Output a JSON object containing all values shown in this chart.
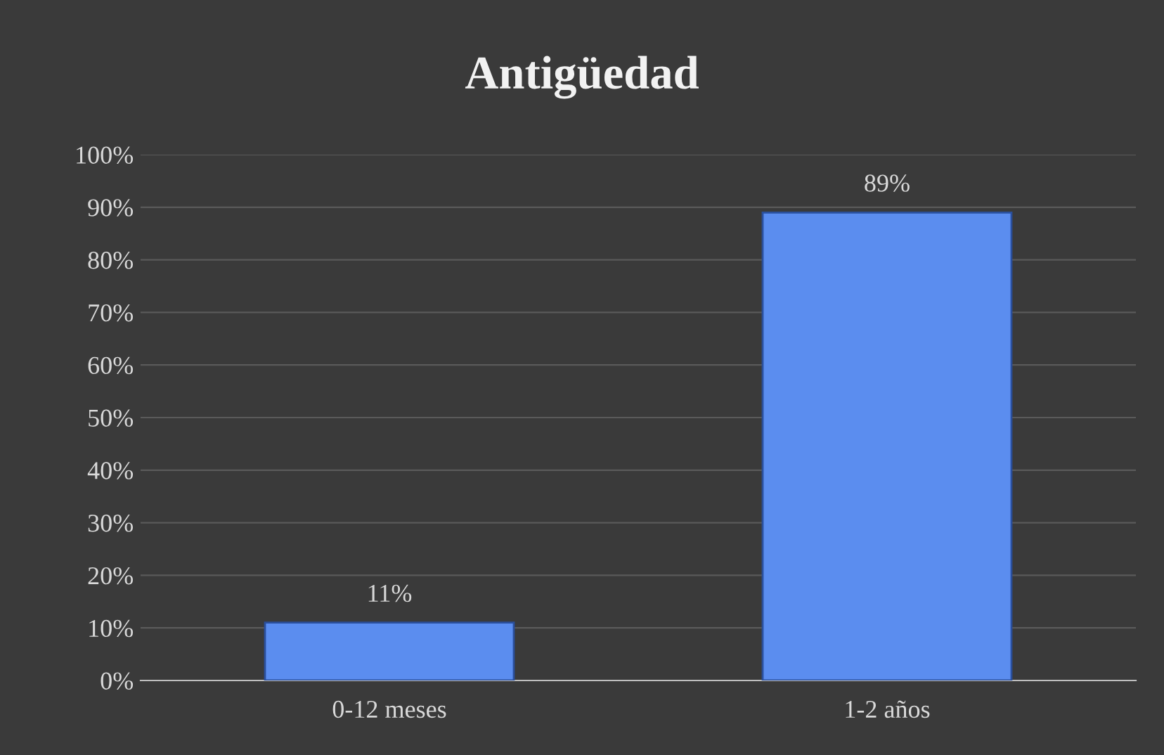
{
  "chart_data": {
    "type": "bar",
    "title": "Antigüedad",
    "categories": [
      "0-12 meses",
      "1-2 años"
    ],
    "values": [
      11,
      89
    ],
    "value_labels": [
      "11%",
      "89%"
    ],
    "color": "#5b8def",
    "ylim": [
      0,
      100
    ],
    "yticks": [
      {
        "value": 0,
        "label": "0%"
      },
      {
        "value": 10,
        "label": "10%"
      },
      {
        "value": 20,
        "label": "20%"
      },
      {
        "value": 30,
        "label": "30%"
      },
      {
        "value": 40,
        "label": "40%"
      },
      {
        "value": 50,
        "label": "50%"
      },
      {
        "value": 60,
        "label": "60%"
      },
      {
        "value": 70,
        "label": "70%"
      },
      {
        "value": 80,
        "label": "80%"
      },
      {
        "value": 90,
        "label": "90%"
      },
      {
        "value": 100,
        "label": "100%"
      }
    ],
    "grid": "y"
  }
}
